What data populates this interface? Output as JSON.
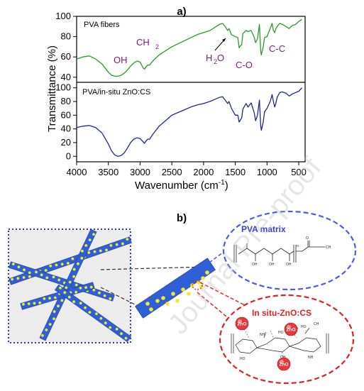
{
  "figure": {
    "panel_a_label": "a)",
    "panel_b_label": "b)",
    "watermark": "Journal Pre-proof"
  },
  "chart_data": [
    {
      "type": "line",
      "panel": "top",
      "series": [
        {
          "name": "PVA fibers",
          "color": "#2a9a2a",
          "x": [
            4000,
            3900,
            3800,
            3700,
            3600,
            3500,
            3450,
            3400,
            3350,
            3300,
            3250,
            3200,
            3150,
            3100,
            3050,
            3000,
            2950,
            2930,
            2910,
            2880,
            2850,
            2800,
            2700,
            2600,
            2500,
            2400,
            2300,
            2200,
            2100,
            2000,
            1900,
            1800,
            1750,
            1700,
            1660,
            1620,
            1600,
            1560,
            1500,
            1460,
            1440,
            1420,
            1400,
            1380,
            1330,
            1300,
            1250,
            1200,
            1180,
            1150,
            1120,
            1100,
            1090,
            1060,
            1040,
            1000,
            950,
            920,
            900,
            880,
            860,
            840,
            800,
            760,
            700,
            650,
            600,
            550,
            500,
            450
          ],
          "y": [
            58,
            60,
            61,
            58,
            53,
            45,
            42,
            41,
            41,
            42,
            44,
            47,
            51,
            54,
            56,
            55,
            49,
            48,
            50,
            52,
            52,
            56,
            62,
            66,
            70,
            73,
            76,
            79,
            82,
            84,
            86,
            90,
            92,
            93,
            90,
            86,
            88,
            82,
            80,
            79,
            69,
            71,
            72,
            83,
            86,
            85,
            86,
            79,
            74,
            78,
            92,
            66,
            62,
            70,
            79,
            80,
            88,
            93,
            86,
            84,
            88,
            90,
            93,
            92,
            90,
            88,
            91,
            92,
            95,
            97
          ]
        }
      ],
      "ylim": [
        35,
        100
      ],
      "yticks": [
        "40",
        "60",
        "80",
        "100"
      ],
      "annotations": [
        "OH",
        "CH",
        "2",
        "H",
        "2",
        "O",
        "C-O",
        "C-C"
      ]
    },
    {
      "type": "line",
      "panel": "bottom",
      "series": [
        {
          "name": "PVA/in-situ ZnO:CS",
          "color": "#1e2a8a",
          "x": [
            4000,
            3900,
            3800,
            3700,
            3600,
            3500,
            3450,
            3400,
            3350,
            3300,
            3250,
            3200,
            3150,
            3100,
            3050,
            3000,
            2950,
            2930,
            2910,
            2880,
            2850,
            2800,
            2700,
            2600,
            2500,
            2400,
            2300,
            2200,
            2100,
            2000,
            1900,
            1800,
            1750,
            1700,
            1660,
            1620,
            1600,
            1560,
            1500,
            1460,
            1440,
            1420,
            1400,
            1380,
            1330,
            1300,
            1250,
            1200,
            1180,
            1150,
            1120,
            1100,
            1090,
            1060,
            1040,
            1000,
            950,
            920,
            900,
            880,
            860,
            840,
            800,
            760,
            700,
            650,
            600,
            550,
            500,
            450
          ],
          "y": [
            42,
            44,
            45,
            42,
            34,
            18,
            8,
            2,
            0,
            1,
            5,
            12,
            20,
            25,
            27,
            26,
            21,
            19,
            22,
            25,
            25,
            32,
            44,
            52,
            60,
            64,
            68,
            72,
            75,
            77,
            80,
            84,
            86,
            87,
            82,
            77,
            80,
            70,
            60,
            60,
            50,
            53,
            56,
            69,
            77,
            72,
            78,
            63,
            52,
            60,
            82,
            45,
            38,
            50,
            65,
            70,
            80,
            90,
            80,
            72,
            78,
            86,
            93,
            94,
            92,
            88,
            91,
            93,
            95,
            100
          ]
        }
      ],
      "ylim": [
        -8,
        108
      ],
      "yticks": [
        "0",
        "20",
        "40",
        "60",
        "80",
        "100"
      ]
    }
  ],
  "chart_common": {
    "xlim": [
      4000,
      400
    ],
    "xticks": [
      "4000",
      "3500",
      "3000",
      "2500",
      "2000",
      "1500",
      "1000",
      "500"
    ],
    "xlabel_main": "Wavenumber (cm",
    "xlabel_sup": "-1",
    "xlabel_end": ")",
    "ylabel": "Transmittance (%)"
  },
  "schematic": {
    "pva_matrix_label": "PVA matrix",
    "insitu_label": "In situ-ZnO:CS",
    "zno": "ZnO",
    "formula_n": "n",
    "formula_oh": "OH",
    "formula_ch3": "CH",
    "formula_o": "O",
    "cs_nh2": "NH",
    "cs_ho": "HO",
    "cs_oh": "OH",
    "colors": {
      "fiber": "#2f5fd6",
      "dot": "#f3ea2a",
      "pva_circle": "#4a5af0",
      "insitu_circle": "#e02020",
      "zno_ball": "#e8393a"
    }
  }
}
